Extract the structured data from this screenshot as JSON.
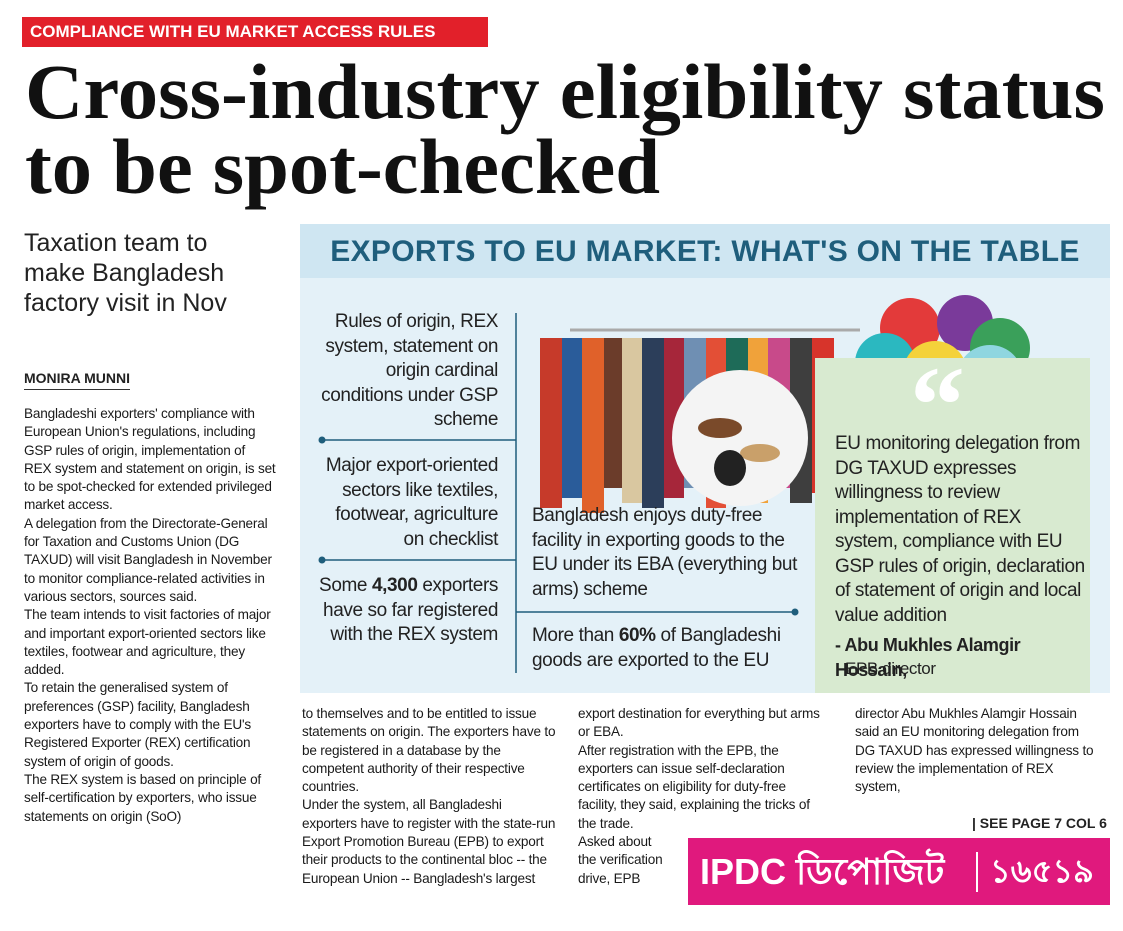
{
  "kicker": "COMPLIANCE WITH EU MARKET ACCESS RULES",
  "headline": {
    "lines": [
      "Cross-industry eligibility status",
      "to be spot-checked"
    ]
  },
  "subhead": "Taxation team to make Bangladesh factory visit in Nov",
  "byline": "MONIRA MUNNI",
  "columns": [
    [
      "Bangladeshi exporters' compliance with European Union's regulations, including GSP rules of origin, implementation of REX system and statement on origin, is set to be spot-checked for extended privileged market access.",
      "A delegation from the Directorate-General for Taxation and Customs Union (DG TAXUD) will visit Bangladesh in November to monitor compliance-related activities in various sectors, sources said.",
      "The team intends to visit factories of major and important export-oriented sectors like textiles, footwear and agriculture, they added.",
      "To retain the generalised system of preferences (GSP) facility, Bangladesh exporters have to comply with the EU's Registered Exporter (REX) certification system of origin of goods.",
      "The REX system is based on principle of self-certification by exporters, who issue statements on origin (SoO)"
    ],
    [
      "to themselves and to be entitled to issue statements on origin. The exporters have to be registered in a database by the competent authority of their respective countries.",
      "Under the system, all Bangladeshi exporters have to register with the state-run Export Promotion Bureau (EPB) to export their products to the continental bloc -- the European Union -- Bangladesh's largest"
    ],
    [
      "export destination for everything but arms or EBA.",
      "After registration with the EPB, the exporters can issue self-declaration certificates on eligibility for duty-free facility, they said, explaining the tricks of the trade.",
      "Asked about the verification drive, EPB"
    ],
    [
      "director Abu Mukhles Alamgir Hossain said an EU monitoring delegation from DG TAXUD has expressed willingness to review the implementation of REX system,"
    ]
  ],
  "see_page": "| SEE PAGE 7 COL 6",
  "infographic": {
    "title": "EXPORTS TO EU MARKET: WHAT'S ON THE TABLE",
    "left_items": [
      {
        "before": "Rules of origin, REX system, statement on origin cardinal conditions under GSP scheme"
      },
      {
        "before": "Major export-oriented sectors like textiles, footwear, agriculture on checklist"
      },
      {
        "before": "Some ",
        "bold": "4,300",
        "after": " exporters have so far registered with the REX system"
      }
    ],
    "middle_items": [
      {
        "before": "Bangladesh enjoys duty-free facility in exporting goods to the EU under its EBA (everything but arms) scheme"
      },
      {
        "before": "More than ",
        "bold": "60%",
        "after": " of Bangladeshi goods are exported to the EU"
      }
    ],
    "quote": {
      "mark": "“",
      "text": "EU monitoring delegation from DG TAXUD expresses willingness to review implementation of REX system, compliance with EU GSP rules of origin, declaration of statement of origin and local value addition",
      "name": "- Abu Mukhles Alamgir Hossain,",
      "role": "EPB director"
    }
  },
  "ad": {
    "brand": "IPDC ডিপোজিট",
    "number": "১৬৫১৯"
  }
}
